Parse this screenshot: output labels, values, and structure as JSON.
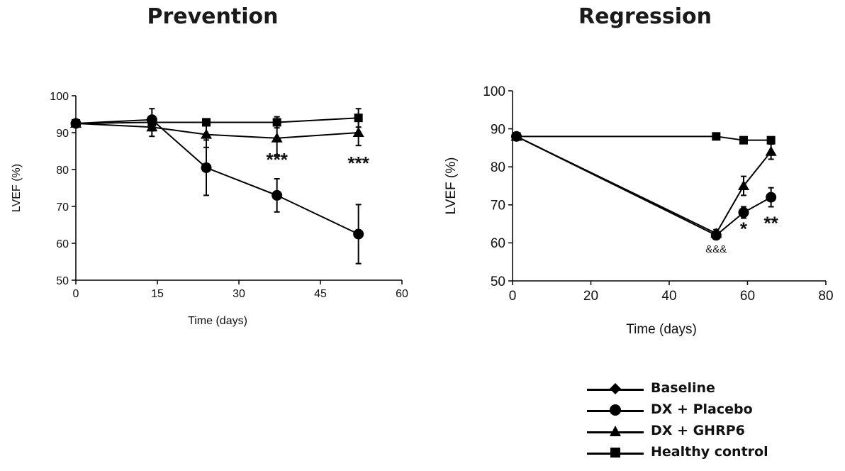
{
  "chart_data": [
    {
      "type": "line",
      "title": "Prevention",
      "xlabel": "Time (days)",
      "ylabel": "LVEF (%)",
      "xlim": [
        0,
        60
      ],
      "ylim": [
        50,
        100
      ],
      "xticks": [
        0,
        15,
        30,
        45,
        60
      ],
      "yticks": [
        50,
        60,
        70,
        80,
        90,
        100
      ],
      "grid": false,
      "series": [
        {
          "name": "Baseline",
          "marker": "diamond",
          "x": [
            0
          ],
          "y": [
            92.5
          ],
          "err": [
            0
          ]
        },
        {
          "name": "DX + Placebo",
          "marker": "circle",
          "x": [
            0,
            14,
            24,
            37,
            52
          ],
          "y": [
            92.5,
            93.5,
            80.5,
            73,
            62.5
          ],
          "err": [
            0,
            3,
            7.5,
            4.5,
            8
          ]
        },
        {
          "name": "DX + GHRP6",
          "marker": "triangle",
          "x": [
            0,
            14,
            24,
            37,
            52
          ],
          "y": [
            92.5,
            91.5,
            89.5,
            88.5,
            90
          ],
          "err": [
            0,
            2.5,
            3.5,
            4.5,
            3.5
          ]
        },
        {
          "name": "Healthy control",
          "marker": "square",
          "x": [
            0,
            14,
            24,
            37,
            52
          ],
          "y": [
            92.5,
            92.8,
            92.8,
            92.8,
            94
          ],
          "err": [
            0,
            0.5,
            0.5,
            1.5,
            2.5
          ]
        }
      ],
      "annotations": [
        {
          "x": 37,
          "y": 81,
          "text": "***"
        },
        {
          "x": 52,
          "y": 80,
          "text": "***"
        }
      ]
    },
    {
      "type": "line",
      "title": "Regression",
      "xlabel": "Time (days)",
      "ylabel": "LVEF (%)",
      "xlim": [
        0,
        80
      ],
      "ylim": [
        50,
        100
      ],
      "xticks": [
        0,
        20,
        40,
        60,
        80
      ],
      "yticks": [
        50,
        60,
        70,
        80,
        90,
        100
      ],
      "grid": false,
      "series": [
        {
          "name": "Baseline",
          "marker": "diamond",
          "x": [
            1
          ],
          "y": [
            88
          ],
          "err": [
            0
          ]
        },
        {
          "name": "DX + Placebo",
          "marker": "circle",
          "x": [
            1,
            52,
            59,
            66
          ],
          "y": [
            88,
            62,
            68,
            72
          ],
          "err": [
            0,
            1,
            1.5,
            2.5
          ]
        },
        {
          "name": "DX + GHRP6",
          "marker": "triangle",
          "x": [
            1,
            52,
            59,
            66
          ],
          "y": [
            88,
            62.5,
            75,
            84
          ],
          "err": [
            0,
            1,
            2.5,
            2
          ]
        },
        {
          "name": "Healthy control",
          "marker": "square",
          "x": [
            1,
            52,
            59,
            66
          ],
          "y": [
            88,
            88,
            87,
            87
          ],
          "err": [
            0,
            0.5,
            0.5,
            0.5
          ]
        }
      ],
      "annotations": [
        {
          "x": 52,
          "y": 57.5,
          "text": "&&&"
        },
        {
          "x": 59,
          "y": 62,
          "text": "*"
        },
        {
          "x": 66,
          "y": 63.5,
          "text": "**"
        }
      ]
    }
  ],
  "legend": {
    "placement": "bottom-right",
    "items": [
      {
        "label": "Baseline",
        "marker": "diamond"
      },
      {
        "label": "DX + Placebo",
        "marker": "circle"
      },
      {
        "label": "DX + GHRP6",
        "marker": "triangle"
      },
      {
        "label": "Healthy control",
        "marker": "square"
      }
    ]
  }
}
